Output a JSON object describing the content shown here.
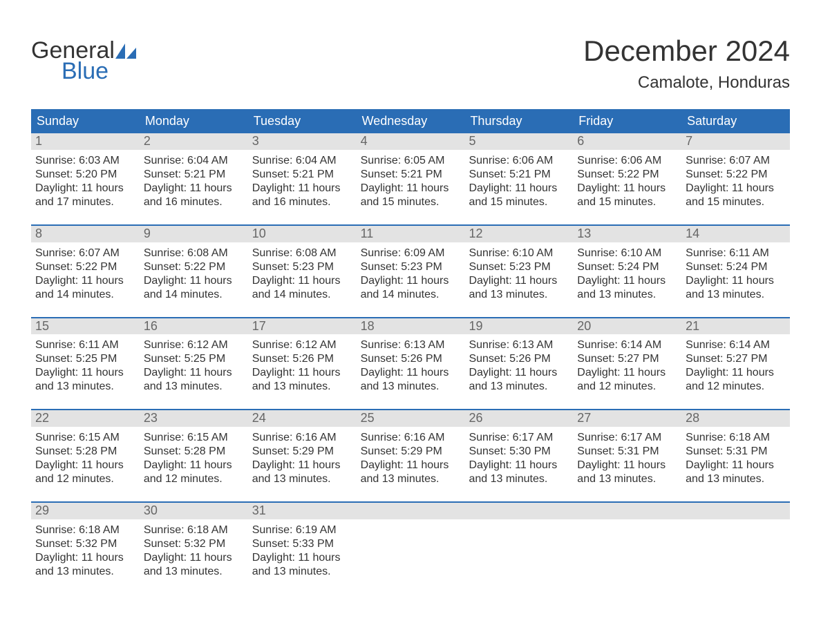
{
  "logo": {
    "text1": "General",
    "text2": "Blue",
    "sail_color": "#2a6db5"
  },
  "title": "December 2024",
  "location": "Camalote, Honduras",
  "colors": {
    "header_bg": "#2a6db5",
    "header_text": "#ffffff",
    "daynum_bg": "#e3e3e3",
    "daynum_text": "#666666",
    "body_text": "#333333",
    "rule": "#2a6db5",
    "page_bg": "#ffffff"
  },
  "weekdays": [
    "Sunday",
    "Monday",
    "Tuesday",
    "Wednesday",
    "Thursday",
    "Friday",
    "Saturday"
  ],
  "weeks": [
    [
      {
        "n": "1",
        "sunrise": "6:03 AM",
        "sunset": "5:20 PM",
        "daylight": "11 hours and 17 minutes."
      },
      {
        "n": "2",
        "sunrise": "6:04 AM",
        "sunset": "5:21 PM",
        "daylight": "11 hours and 16 minutes."
      },
      {
        "n": "3",
        "sunrise": "6:04 AM",
        "sunset": "5:21 PM",
        "daylight": "11 hours and 16 minutes."
      },
      {
        "n": "4",
        "sunrise": "6:05 AM",
        "sunset": "5:21 PM",
        "daylight": "11 hours and 15 minutes."
      },
      {
        "n": "5",
        "sunrise": "6:06 AM",
        "sunset": "5:21 PM",
        "daylight": "11 hours and 15 minutes."
      },
      {
        "n": "6",
        "sunrise": "6:06 AM",
        "sunset": "5:22 PM",
        "daylight": "11 hours and 15 minutes."
      },
      {
        "n": "7",
        "sunrise": "6:07 AM",
        "sunset": "5:22 PM",
        "daylight": "11 hours and 15 minutes."
      }
    ],
    [
      {
        "n": "8",
        "sunrise": "6:07 AM",
        "sunset": "5:22 PM",
        "daylight": "11 hours and 14 minutes."
      },
      {
        "n": "9",
        "sunrise": "6:08 AM",
        "sunset": "5:22 PM",
        "daylight": "11 hours and 14 minutes."
      },
      {
        "n": "10",
        "sunrise": "6:08 AM",
        "sunset": "5:23 PM",
        "daylight": "11 hours and 14 minutes."
      },
      {
        "n": "11",
        "sunrise": "6:09 AM",
        "sunset": "5:23 PM",
        "daylight": "11 hours and 14 minutes."
      },
      {
        "n": "12",
        "sunrise": "6:10 AM",
        "sunset": "5:23 PM",
        "daylight": "11 hours and 13 minutes."
      },
      {
        "n": "13",
        "sunrise": "6:10 AM",
        "sunset": "5:24 PM",
        "daylight": "11 hours and 13 minutes."
      },
      {
        "n": "14",
        "sunrise": "6:11 AM",
        "sunset": "5:24 PM",
        "daylight": "11 hours and 13 minutes."
      }
    ],
    [
      {
        "n": "15",
        "sunrise": "6:11 AM",
        "sunset": "5:25 PM",
        "daylight": "11 hours and 13 minutes."
      },
      {
        "n": "16",
        "sunrise": "6:12 AM",
        "sunset": "5:25 PM",
        "daylight": "11 hours and 13 minutes."
      },
      {
        "n": "17",
        "sunrise": "6:12 AM",
        "sunset": "5:26 PM",
        "daylight": "11 hours and 13 minutes."
      },
      {
        "n": "18",
        "sunrise": "6:13 AM",
        "sunset": "5:26 PM",
        "daylight": "11 hours and 13 minutes."
      },
      {
        "n": "19",
        "sunrise": "6:13 AM",
        "sunset": "5:26 PM",
        "daylight": "11 hours and 13 minutes."
      },
      {
        "n": "20",
        "sunrise": "6:14 AM",
        "sunset": "5:27 PM",
        "daylight": "11 hours and 12 minutes."
      },
      {
        "n": "21",
        "sunrise": "6:14 AM",
        "sunset": "5:27 PM",
        "daylight": "11 hours and 12 minutes."
      }
    ],
    [
      {
        "n": "22",
        "sunrise": "6:15 AM",
        "sunset": "5:28 PM",
        "daylight": "11 hours and 12 minutes."
      },
      {
        "n": "23",
        "sunrise": "6:15 AM",
        "sunset": "5:28 PM",
        "daylight": "11 hours and 12 minutes."
      },
      {
        "n": "24",
        "sunrise": "6:16 AM",
        "sunset": "5:29 PM",
        "daylight": "11 hours and 13 minutes."
      },
      {
        "n": "25",
        "sunrise": "6:16 AM",
        "sunset": "5:29 PM",
        "daylight": "11 hours and 13 minutes."
      },
      {
        "n": "26",
        "sunrise": "6:17 AM",
        "sunset": "5:30 PM",
        "daylight": "11 hours and 13 minutes."
      },
      {
        "n": "27",
        "sunrise": "6:17 AM",
        "sunset": "5:31 PM",
        "daylight": "11 hours and 13 minutes."
      },
      {
        "n": "28",
        "sunrise": "6:18 AM",
        "sunset": "5:31 PM",
        "daylight": "11 hours and 13 minutes."
      }
    ],
    [
      {
        "n": "29",
        "sunrise": "6:18 AM",
        "sunset": "5:32 PM",
        "daylight": "11 hours and 13 minutes."
      },
      {
        "n": "30",
        "sunrise": "6:18 AM",
        "sunset": "5:32 PM",
        "daylight": "11 hours and 13 minutes."
      },
      {
        "n": "31",
        "sunrise": "6:19 AM",
        "sunset": "5:33 PM",
        "daylight": "11 hours and 13 minutes."
      },
      null,
      null,
      null,
      null
    ]
  ],
  "labels": {
    "sunrise": "Sunrise:",
    "sunset": "Sunset:",
    "daylight": "Daylight:"
  }
}
